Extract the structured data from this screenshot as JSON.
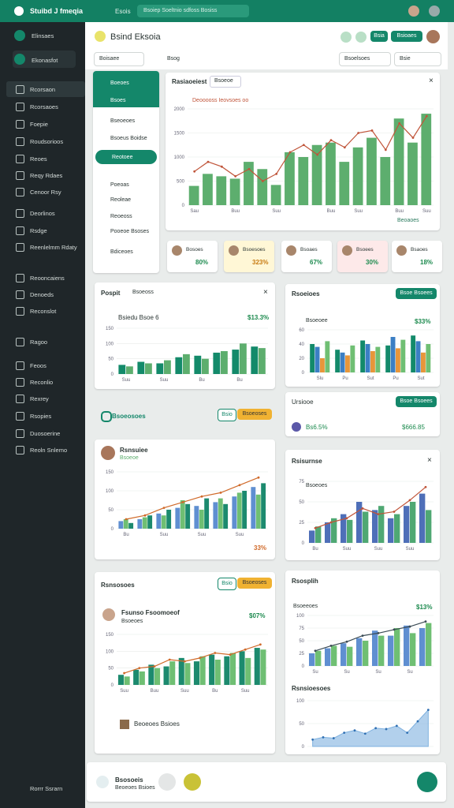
{
  "topbar": {
    "app_title": "Stuibd J fmeqia",
    "tab": "Esois",
    "search": "Bsoiep Soeltnio sdfoss Bosiss"
  },
  "sidebar": {
    "brand": "Elinsaes",
    "workspace": "Ekonasfot",
    "items": [
      "Rcorsaon",
      "Rcorsaoes",
      "Foepie",
      "Roudsorioos",
      "Reoes",
      "Reqy Rdaes",
      "Cenoor Rsy",
      "Deorlinos",
      "Rsdge",
      "Reenlelmm Rdaty",
      "Reooncaiens",
      "Denoeds",
      "Reconslot",
      "Ragoo",
      "Feoos",
      "Reconlio",
      "Rexrey",
      "Rsopies",
      "Duosoerine",
      "Reoln Snlemo"
    ],
    "footer": "Rorrr Ssrarn"
  },
  "header": {
    "title": "Bsind Eksoia",
    "buttons": [
      "Bsia",
      "Bsioaes"
    ],
    "filters": [
      "Boisaee",
      "Bsog",
      "Bsoelsoes",
      "Bsie"
    ]
  },
  "subnav": {
    "items": [
      "Boeoes",
      "Bsoes",
      "Bseoeoes",
      "Bsoeus Boidse",
      "Reotoee",
      "Poeoas",
      "Reoleae",
      "Reoeoss",
      "Pooeoe Bsoses",
      "Bdiceoes"
    ]
  },
  "kpis": [
    {
      "label": "Bosoes",
      "value": "80%"
    },
    {
      "label": "Bsoesoes",
      "value": "323%"
    },
    {
      "label": "Bsoaes",
      "value": "67%"
    },
    {
      "label": "Bsoees",
      "value": "30%"
    },
    {
      "label": "Bsaoes",
      "value": "18%"
    }
  ],
  "sections": [
    {
      "title": "Bsoeosoes",
      "buttons": [
        "Bsio",
        "Bsoeoses"
      ]
    },
    {
      "title": "Rsnsosoes",
      "buttons": [
        "Bsio",
        "Bsoeoses"
      ]
    }
  ],
  "mini": {
    "title": "Ursiooe",
    "button": "Bsoe Bsoees",
    "label": "Bs6.5%",
    "stat": "$666.85"
  },
  "bottom": {
    "title": "Bsosoeis",
    "subtitle": "Beoeoes Bsioes"
  },
  "chart_data": [
    {
      "type": "combo",
      "title": "Rasiaoeiest",
      "tab": "Bsoeoe",
      "subtitle": "Deooooss Ieovsoes oo",
      "stat": "Beoaoes",
      "ylim": [
        0,
        2000
      ],
      "yticks": [
        0,
        500,
        1000,
        1500,
        2000
      ],
      "categories": [
        "Sau",
        null,
        null,
        "Buu",
        null,
        null,
        "Suu",
        null,
        null,
        null,
        "Buu",
        null,
        "Suu",
        null,
        null,
        "Buu",
        null,
        "Suu"
      ],
      "series": [
        {
          "type": "bar",
          "color": "#5dae6e",
          "values": [
            400,
            650,
            600,
            550,
            900,
            750,
            420,
            1100,
            1000,
            1250,
            1300,
            900,
            1200,
            1400,
            1000,
            1800,
            1300,
            1900
          ]
        },
        {
          "type": "line",
          "color": "#c0553a",
          "values": [
            700,
            900,
            800,
            600,
            750,
            500,
            650,
            1100,
            1250,
            1050,
            1350,
            1200,
            1500,
            1550,
            1150,
            1700,
            1400,
            1850
          ]
        }
      ]
    },
    {
      "type": "combo",
      "title": "Pospit",
      "tab": "Bsoeoss",
      "subtitle": "Bsiedu Bsoe 6",
      "stat": "$13.3%",
      "ylim": [
        0,
        150
      ],
      "yticks": [
        0,
        50,
        100,
        150
      ],
      "categories": [
        "Suu",
        null,
        "Suu",
        null,
        "Bu",
        null,
        "Bu",
        null
      ],
      "series": [
        {
          "type": "bar",
          "color": "#138a6a",
          "values": [
            30,
            40,
            35,
            55,
            60,
            70,
            80,
            90
          ]
        },
        {
          "type": "bar",
          "color": "#5dae6e",
          "values": [
            25,
            35,
            45,
            65,
            50,
            75,
            100,
            85
          ]
        }
      ]
    },
    {
      "type": "combo",
      "title": "Rsoeioes",
      "subtitle": "Bsoeoee",
      "stat": "$33%",
      "ylim": [
        0,
        60
      ],
      "yticks": [
        0,
        20,
        40,
        60
      ],
      "categories": [
        "Slu",
        "Pu",
        "Sut",
        "Pu",
        "Sut"
      ],
      "series": [
        {
          "type": "bar",
          "color": "#138a6a",
          "values": [
            40,
            32,
            45,
            38,
            52
          ]
        },
        {
          "type": "bar",
          "color": "#3b7fc4",
          "values": [
            36,
            28,
            40,
            50,
            44
          ]
        },
        {
          "type": "bar",
          "color": "#e7963a",
          "values": [
            20,
            24,
            30,
            34,
            28
          ]
        },
        {
          "type": "bar",
          "color": "#6fbf73",
          "values": [
            44,
            38,
            36,
            46,
            40
          ]
        }
      ]
    },
    {
      "type": "combo",
      "title": "Rsnsuiee",
      "subtitle": "Bsoeoe",
      "stat": "33%",
      "ylim": [
        0,
        150
      ],
      "yticks": [
        0,
        50,
        100,
        150
      ],
      "categories": [
        "Bu",
        null,
        "Suu",
        null,
        "Suu",
        null,
        "Suu",
        null
      ],
      "series": [
        {
          "type": "bar",
          "color": "#5f8fd1",
          "values": [
            20,
            25,
            40,
            55,
            60,
            70,
            85,
            110
          ]
        },
        {
          "type": "bar",
          "color": "#6fbf73",
          "values": [
            25,
            30,
            35,
            75,
            50,
            80,
            95,
            90
          ]
        },
        {
          "type": "bar",
          "color": "#1c8a6e",
          "values": [
            15,
            35,
            50,
            65,
            80,
            65,
            100,
            120
          ]
        },
        {
          "type": "line",
          "color": "#d06a2a",
          "values": [
            25,
            35,
            55,
            70,
            85,
            95,
            115,
            135
          ]
        }
      ]
    },
    {
      "type": "combo",
      "title": "Rsisurnse",
      "subtitle": "Bsoeoes",
      "ylim": [
        0,
        75
      ],
      "yticks": [
        0,
        25,
        50,
        75
      ],
      "categories": [
        "Bu",
        null,
        "Suu",
        null,
        "Suu",
        null,
        "Suu",
        null
      ],
      "series": [
        {
          "type": "bar",
          "color": "#4e6fb8",
          "values": [
            15,
            25,
            35,
            50,
            40,
            30,
            45,
            60
          ]
        },
        {
          "type": "bar",
          "color": "#4fa873",
          "values": [
            20,
            30,
            28,
            38,
            45,
            35,
            50,
            40
          ]
        },
        {
          "type": "line",
          "color": "#c0553a",
          "values": [
            18,
            25,
            30,
            42,
            35,
            38,
            52,
            68
          ]
        }
      ]
    },
    {
      "type": "combo",
      "title": "Fsunso Fsoomoeof",
      "subtitle": "Bsoeoes",
      "stat": "$07%",
      "ylim": [
        0,
        150
      ],
      "yticks": [
        0,
        50,
        100,
        150
      ],
      "categories": [
        "Suu",
        null,
        "Buu",
        null,
        "Suu",
        null,
        "Bu",
        null,
        "Suu",
        null
      ],
      "series": [
        {
          "type": "bar",
          "color": "#1c8a6e",
          "values": [
            30,
            45,
            60,
            55,
            80,
            70,
            90,
            85,
            100,
            110
          ]
        },
        {
          "type": "bar",
          "color": "#6fbf73",
          "values": [
            25,
            40,
            50,
            70,
            65,
            85,
            75,
            95,
            80,
            105
          ]
        },
        {
          "type": "line",
          "color": "#d06a2a",
          "values": [
            35,
            50,
            55,
            75,
            70,
            80,
            95,
            90,
            105,
            120
          ]
        }
      ]
    },
    {
      "type": "combo",
      "title": "Rsosplih",
      "subtitle": "Bsoeeoes",
      "stat": "$13%",
      "ylim": [
        0,
        100
      ],
      "yticks": [
        0,
        25,
        50,
        75,
        100
      ],
      "categories": [
        "Su",
        null,
        "Su",
        null,
        "Su",
        null,
        "Su",
        null
      ],
      "series": [
        {
          "type": "bar",
          "color": "#5f8fd1",
          "values": [
            25,
            35,
            45,
            55,
            70,
            60,
            80,
            75
          ]
        },
        {
          "type": "bar",
          "color": "#6fbf73",
          "values": [
            30,
            40,
            38,
            50,
            60,
            75,
            65,
            85
          ]
        },
        {
          "type": "line",
          "color": "#3b4b55",
          "values": [
            30,
            40,
            48,
            60,
            65,
            72,
            78,
            88
          ]
        }
      ]
    },
    {
      "type": "combo",
      "title": "Rsnsioesoes",
      "ylim": [
        0,
        100
      ],
      "yticks": [
        0,
        50,
        100
      ],
      "categories": [
        null,
        null,
        null,
        null,
        null,
        null,
        null,
        null,
        null,
        null,
        null,
        null
      ],
      "series": [
        {
          "type": "area",
          "color": "#7fb1df",
          "values": [
            15,
            20,
            18,
            30,
            35,
            28,
            40,
            38,
            45,
            30,
            55,
            80
          ]
        }
      ]
    }
  ]
}
